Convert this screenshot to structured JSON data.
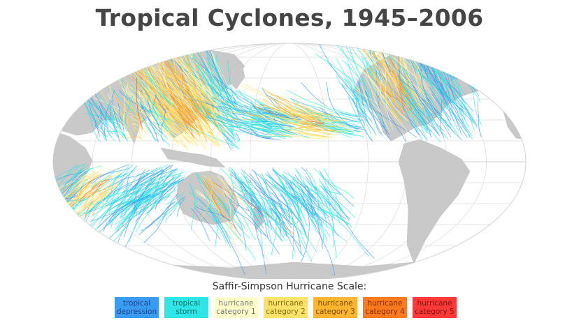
{
  "title": "Tropical Cyclones, 1945–2006",
  "legend": {
    "title": "Saffir-Simpson Hurricane Scale:",
    "items": [
      {
        "lines": [
          "tropical",
          "depression"
        ],
        "color": "#3a9cf0"
      },
      {
        "lines": [
          "tropical",
          "storm"
        ],
        "color": "#2ee6e6"
      },
      {
        "lines": [
          "hurricane",
          "category 1"
        ],
        "color": "#ffffcc"
      },
      {
        "lines": [
          "hurricane",
          "category 2"
        ],
        "color": "#ffe26a"
      },
      {
        "lines": [
          "hurricane",
          "category 3"
        ],
        "color": "#ffb530"
      },
      {
        "lines": [
          "hurricane",
          "category 4"
        ],
        "color": "#ff7a1c"
      },
      {
        "lines": [
          "hurricane",
          "category 5"
        ],
        "color": "#ff3838"
      }
    ]
  }
}
